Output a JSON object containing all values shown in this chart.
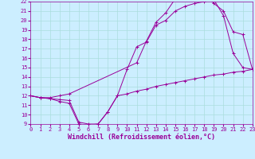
{
  "xlabel": "Windchill (Refroidissement éolien,°C)",
  "bg_color": "#cceeff",
  "line_color": "#990099",
  "xmin": 0,
  "xmax": 23,
  "ymin": 9,
  "ymax": 22,
  "line1_x": [
    0,
    1,
    2,
    3,
    4,
    5,
    6,
    7,
    8,
    9,
    10,
    11,
    12,
    13,
    14,
    15,
    16,
    17,
    18,
    19,
    20,
    21,
    22,
    23
  ],
  "line1_y": [
    12,
    11.8,
    11.7,
    11.6,
    11.5,
    9.2,
    9.0,
    9.0,
    10.3,
    12.0,
    12.2,
    12.5,
    12.7,
    13.0,
    13.2,
    13.4,
    13.6,
    13.8,
    14.0,
    14.2,
    14.3,
    14.5,
    14.6,
    14.8
  ],
  "line2_x": [
    0,
    1,
    2,
    3,
    4,
    5,
    6,
    7,
    8,
    9,
    10,
    11,
    12,
    13,
    14,
    15,
    16,
    17,
    18,
    19,
    20,
    21,
    22,
    23
  ],
  "line2_y": [
    12,
    11.8,
    11.7,
    11.4,
    11.2,
    9.0,
    8.9,
    9.0,
    10.3,
    12.0,
    14.8,
    17.2,
    17.7,
    19.5,
    20.0,
    21.0,
    21.5,
    21.8,
    22.0,
    22.2,
    20.5,
    16.5,
    15.0,
    14.8
  ],
  "line3_x": [
    0,
    1,
    2,
    3,
    4,
    11,
    12,
    13,
    14,
    15,
    16,
    17,
    18,
    19,
    20,
    21,
    22,
    23
  ],
  "line3_y": [
    12,
    11.8,
    11.8,
    12.0,
    12.2,
    15.5,
    17.8,
    19.8,
    20.8,
    22.3,
    22.5,
    22.6,
    22.8,
    21.8,
    21.0,
    18.8,
    18.5,
    14.8
  ],
  "grid_color": "#aadddd",
  "tick_fontsize": 5.0,
  "xlabel_fontsize": 6.0
}
